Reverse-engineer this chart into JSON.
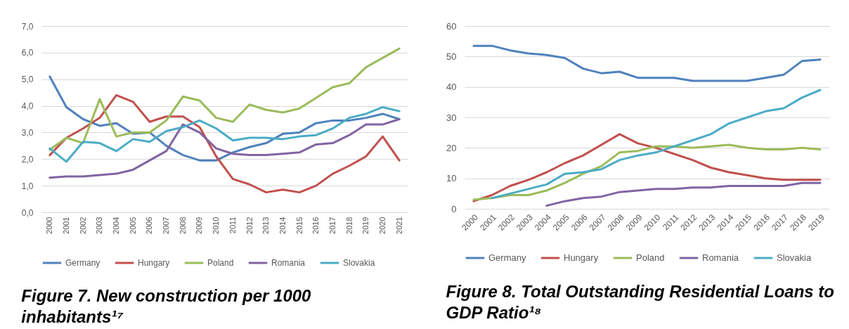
{
  "chart_data": [
    {
      "type": "line",
      "categories": [
        "2000",
        "2001",
        "2002",
        "2003",
        "2004",
        "2005",
        "2006",
        "2007",
        "2008",
        "2009",
        "2010",
        "2011",
        "2012",
        "2013",
        "2014",
        "2015",
        "2016",
        "2017",
        "2018",
        "2019",
        "2020",
        "2021"
      ],
      "series": [
        {
          "name": "Germany",
          "color": "#4f81bd",
          "values": [
            5.1,
            3.95,
            3.5,
            3.25,
            3.35,
            2.95,
            3.0,
            2.5,
            2.15,
            1.95,
            1.95,
            2.25,
            2.45,
            2.6,
            2.95,
            3.0,
            3.35,
            3.45,
            3.45,
            3.55,
            3.7,
            3.5
          ]
        },
        {
          "name": "Hungary",
          "color": "#c0504d",
          "values": [
            2.15,
            2.8,
            3.15,
            3.55,
            4.4,
            4.15,
            3.4,
            3.6,
            3.6,
            3.2,
            2.1,
            1.25,
            1.05,
            0.75,
            0.85,
            0.75,
            1.0,
            1.45,
            1.75,
            2.1,
            2.85,
            1.95
          ]
        },
        {
          "name": "Poland",
          "color": "#9bbb59",
          "values": [
            2.35,
            2.8,
            2.6,
            4.25,
            2.85,
            3.0,
            3.0,
            3.45,
            4.35,
            4.2,
            3.55,
            3.4,
            4.05,
            3.85,
            3.75,
            3.9,
            4.3,
            4.7,
            4.85,
            5.45,
            5.8,
            6.15
          ]
        },
        {
          "name": "Romania",
          "color": "#8064a2",
          "values": [
            1.3,
            1.35,
            1.35,
            1.4,
            1.45,
            1.6,
            1.95,
            2.3,
            3.3,
            3.0,
            2.4,
            2.2,
            2.15,
            2.15,
            2.2,
            2.25,
            2.55,
            2.6,
            2.9,
            3.3,
            3.3,
            3.5
          ]
        },
        {
          "name": "Slovakia",
          "color": "#4bacc6",
          "values": [
            2.4,
            1.9,
            2.65,
            2.6,
            2.3,
            2.75,
            2.65,
            3.05,
            3.2,
            3.45,
            3.15,
            2.7,
            2.8,
            2.8,
            2.75,
            2.85,
            2.9,
            3.15,
            3.55,
            3.7,
            3.95,
            3.8
          ]
        }
      ],
      "ylim": [
        0,
        7
      ],
      "yticks": [
        {
          "value": 0,
          "label": "0,0"
        },
        {
          "value": 1,
          "label": "1,0"
        },
        {
          "value": 2,
          "label": "2,0"
        },
        {
          "value": 3,
          "label": "3,0"
        },
        {
          "value": 4,
          "label": "4,0"
        },
        {
          "value": 5,
          "label": "5,0"
        },
        {
          "value": 6,
          "label": "6,0"
        },
        {
          "value": 7,
          "label": "7,0"
        }
      ],
      "grid": "y",
      "legend": "bottom",
      "line_style": "solid",
      "annotations": [
        "Figure 7. New construction per 1000 inhabitants¹⁷"
      ]
    },
    {
      "type": "line",
      "categories": [
        "2000",
        "2001",
        "2002",
        "2003",
        "2004",
        "2005",
        "2006",
        "2007",
        "2008",
        "2009",
        "2010",
        "2011",
        "2012",
        "2013",
        "2014",
        "2015",
        "2016",
        "2017",
        "2018",
        "2019"
      ],
      "series": [
        {
          "name": "Germany",
          "color": "#4f81bd",
          "values": [
            53.5,
            53.5,
            52,
            51,
            50.5,
            49.5,
            46,
            44.5,
            45,
            43,
            43,
            43,
            42,
            42,
            42,
            42,
            43,
            44,
            48.5,
            49
          ]
        },
        {
          "name": "Hungary",
          "color": "#c0504d",
          "values": [
            2.5,
            4.5,
            7.5,
            9.5,
            12,
            15,
            17.5,
            21,
            24.5,
            21.5,
            20,
            18,
            16,
            13.5,
            12,
            11,
            10,
            9.5,
            9.5,
            9.5
          ]
        },
        {
          "name": "Poland",
          "color": "#9bbb59",
          "values": [
            3,
            3.5,
            4.5,
            4.5,
            6,
            8.5,
            11.5,
            14,
            18.5,
            19,
            20.5,
            20.5,
            20,
            20.5,
            21,
            20,
            19.5,
            19.5,
            20,
            19.5
          ]
        },
        {
          "name": "Romania",
          "color": "#8064a2",
          "values": [
            null,
            null,
            null,
            null,
            1,
            2.5,
            3.5,
            4,
            5.5,
            6,
            6.5,
            6.5,
            7,
            7,
            7.5,
            7.5,
            7.5,
            7.5,
            8.5,
            8.5
          ]
        },
        {
          "name": "Slovakia",
          "color": "#4bacc6",
          "values": [
            null,
            3.5,
            5,
            6.5,
            8,
            11.5,
            12,
            13,
            16,
            17.5,
            18.5,
            20.5,
            22.5,
            24.5,
            28,
            30,
            32,
            33,
            36.5,
            39
          ]
        }
      ],
      "ylim": [
        0,
        60
      ],
      "yticks": [
        0,
        10,
        20,
        30,
        40,
        50,
        60
      ],
      "grid": "y",
      "legend": "bottom",
      "line_style": "solid",
      "annotations": [
        "Figure 8. Total Outstanding Residential Loans to GDP Ratio¹⁸"
      ]
    }
  ]
}
